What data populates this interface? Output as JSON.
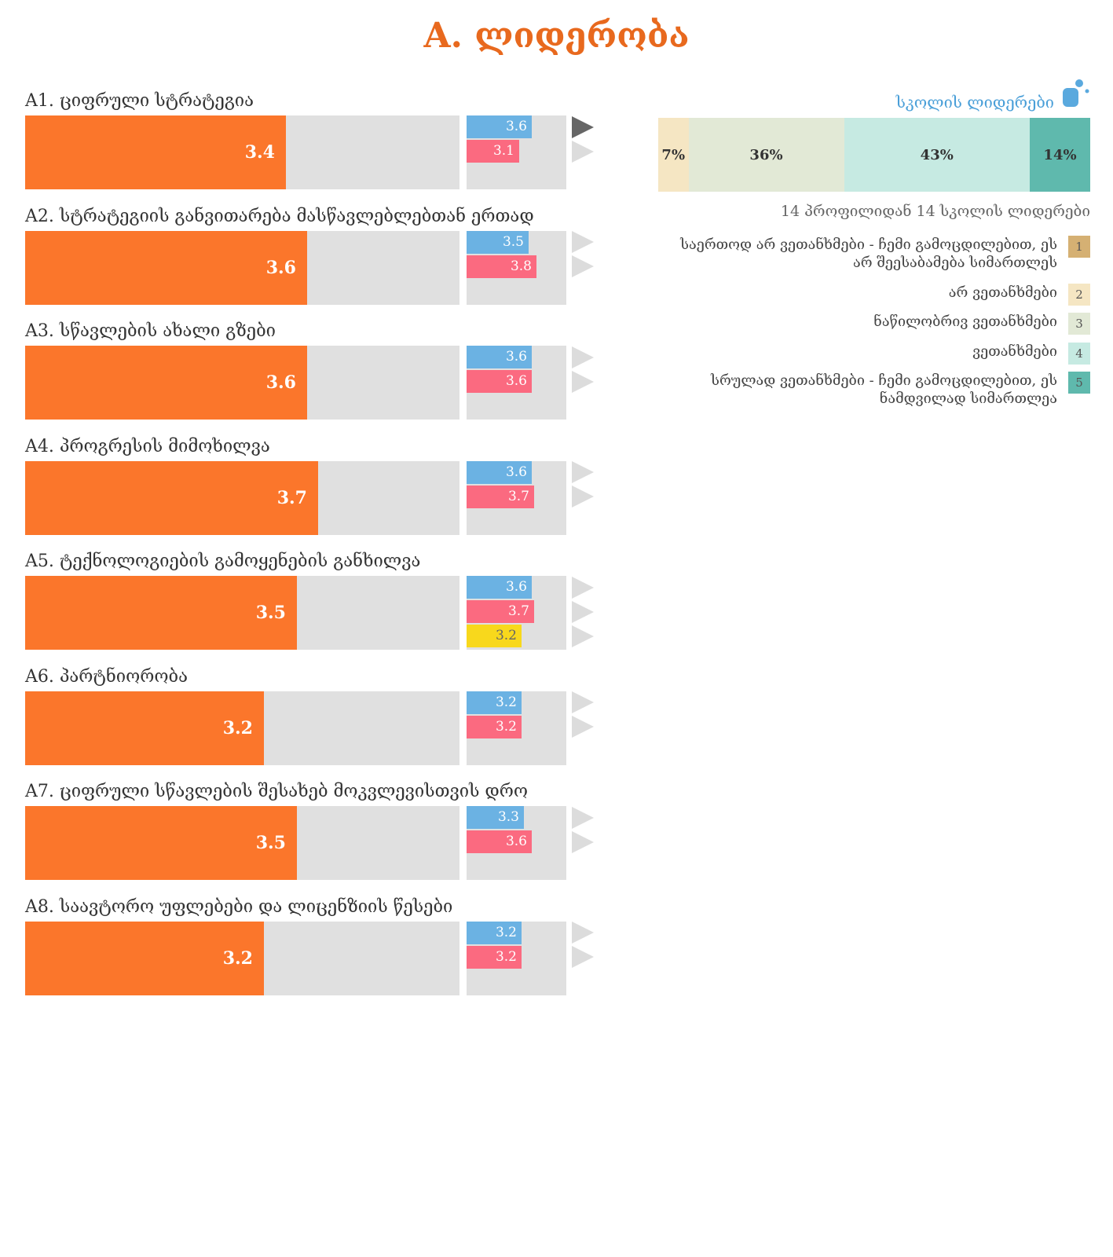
{
  "page_title": "A. ლიდერობა",
  "right_panel": {
    "header": "სკოლის ლიდერები",
    "icon": "person-icon",
    "caption": "14 პროფილიდან 14 სკოლის ლიდერები"
  },
  "chart_data": [
    {
      "type": "bar",
      "orientation": "horizontal",
      "xlim": [
        1,
        5
      ],
      "active_arrow": {
        "item": 0,
        "row": 0
      },
      "colors": {
        "main": "#fb762b",
        "track": "#e0e0e0",
        "blue": "#6bb2e3",
        "pink": "#fb6a80",
        "yellow": "#f8d81c"
      },
      "items": [
        {
          "label": "A1. ციფრული სტრატეგია",
          "value": 3.4,
          "comparisons": [
            {
              "value": 3.6,
              "color": "#6bb2e3"
            },
            {
              "value": 3.1,
              "color": "#fb6a80"
            }
          ]
        },
        {
          "label": "A2. სტრატეგიის განვითარება მასწავლებლებთან ერთად",
          "value": 3.6,
          "comparisons": [
            {
              "value": 3.5,
              "color": "#6bb2e3"
            },
            {
              "value": 3.8,
              "color": "#fb6a80"
            }
          ]
        },
        {
          "label": "A3. სწავლების ახალი გზები",
          "value": 3.6,
          "comparisons": [
            {
              "value": 3.6,
              "color": "#6bb2e3"
            },
            {
              "value": 3.6,
              "color": "#fb6a80"
            }
          ]
        },
        {
          "label": "A4. პროგრესის მიმოხილვა",
          "value": 3.7,
          "comparisons": [
            {
              "value": 3.6,
              "color": "#6bb2e3"
            },
            {
              "value": 3.7,
              "color": "#fb6a80"
            }
          ]
        },
        {
          "label": "A5. ტექნოლოგიების გამოყენების განხილვა",
          "value": 3.5,
          "comparisons": [
            {
              "value": 3.6,
              "color": "#6bb2e3"
            },
            {
              "value": 3.7,
              "color": "#fb6a80"
            },
            {
              "value": 3.2,
              "color": "#f8d81c"
            }
          ]
        },
        {
          "label": "A6. პარტნიორობა",
          "value": 3.2,
          "comparisons": [
            {
              "value": 3.2,
              "color": "#6bb2e3"
            },
            {
              "value": 3.2,
              "color": "#fb6a80"
            }
          ]
        },
        {
          "label": "A7. ციფრული სწავლების შესახებ მოკვლევისთვის დრო",
          "value": 3.5,
          "comparisons": [
            {
              "value": 3.3,
              "color": "#6bb2e3"
            },
            {
              "value": 3.6,
              "color": "#fb6a80"
            }
          ]
        },
        {
          "label": "A8. საავტორო უფლებები და ლიცენზიის წესები",
          "value": 3.2,
          "comparisons": [
            {
              "value": 3.2,
              "color": "#6bb2e3"
            },
            {
              "value": 3.2,
              "color": "#fb6a80"
            }
          ]
        }
      ]
    },
    {
      "type": "bar",
      "orientation": "stacked-horizontal",
      "segments": [
        {
          "value": 7,
          "label": "7%",
          "color": "#f5e6c3"
        },
        {
          "value": 36,
          "label": "36%",
          "color": "#e2e9d6"
        },
        {
          "value": 43,
          "label": "43%",
          "color": "#c6eae2"
        },
        {
          "value": 14,
          "label": "14%",
          "color": "#5fb9ad"
        }
      ],
      "legend": [
        {
          "text": "საერთოდ არ ვეთანხმები - ჩემი გამოცდილებით, ეს არ შეესაბამება სიმართლეს",
          "num": "1",
          "color": "#d5b073"
        },
        {
          "text": "არ ვეთანხმები",
          "num": "2",
          "color": "#f5e6c3"
        },
        {
          "text": "ნაწილობრივ ვეთანხმები",
          "num": "3",
          "color": "#e2e9d6"
        },
        {
          "text": "ვეთანხმები",
          "num": "4",
          "color": "#c6eae2"
        },
        {
          "text": "სრულად ვეთანხმები - ჩემი გამოცდილებით, ეს ნამდვილად სიმართლეა",
          "num": "5",
          "color": "#5fb9ad"
        }
      ]
    }
  ]
}
